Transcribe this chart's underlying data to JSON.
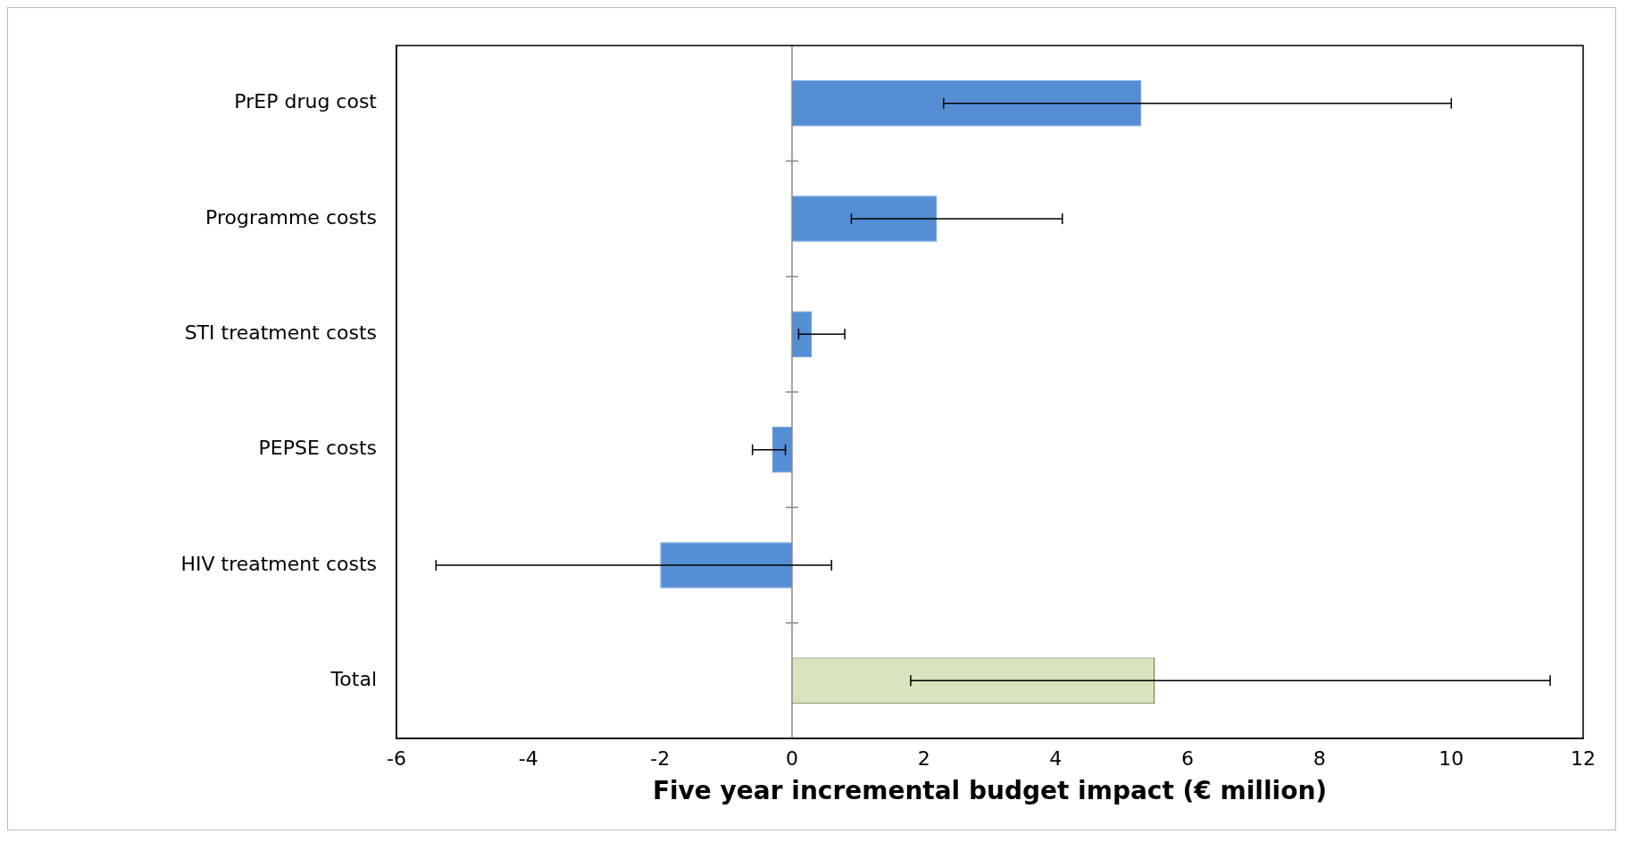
{
  "chart_data": {
    "type": "bar",
    "orientation": "horizontal",
    "xlabel": "Five year incremental budget impact (€ million)",
    "categories": [
      "PrEP drug cost",
      "Programme costs",
      "STI treatment costs",
      "PEPSE costs",
      "HIV treatment costs",
      "Total"
    ],
    "values": [
      5.3,
      2.2,
      0.3,
      -0.3,
      -2.0,
      5.5
    ],
    "colors": [
      "#558ed5",
      "#558ed5",
      "#558ed5",
      "#558ed5",
      "#558ed5",
      "#d7e4bd"
    ],
    "errors": [
      [
        2.3,
        10.0
      ],
      [
        0.9,
        4.1
      ],
      [
        0.1,
        0.8
      ],
      [
        -0.6,
        -0.1
      ],
      [
        -5.4,
        0.6
      ],
      [
        1.8,
        11.5
      ]
    ],
    "xlim": [
      -6,
      12
    ],
    "xticks": [
      -6,
      -4,
      -2,
      0,
      2,
      4,
      6,
      8,
      10,
      12
    ],
    "ref_lines": [
      {
        "axis": "x",
        "value": 0,
        "color": "#888888"
      }
    ],
    "legend": false
  }
}
